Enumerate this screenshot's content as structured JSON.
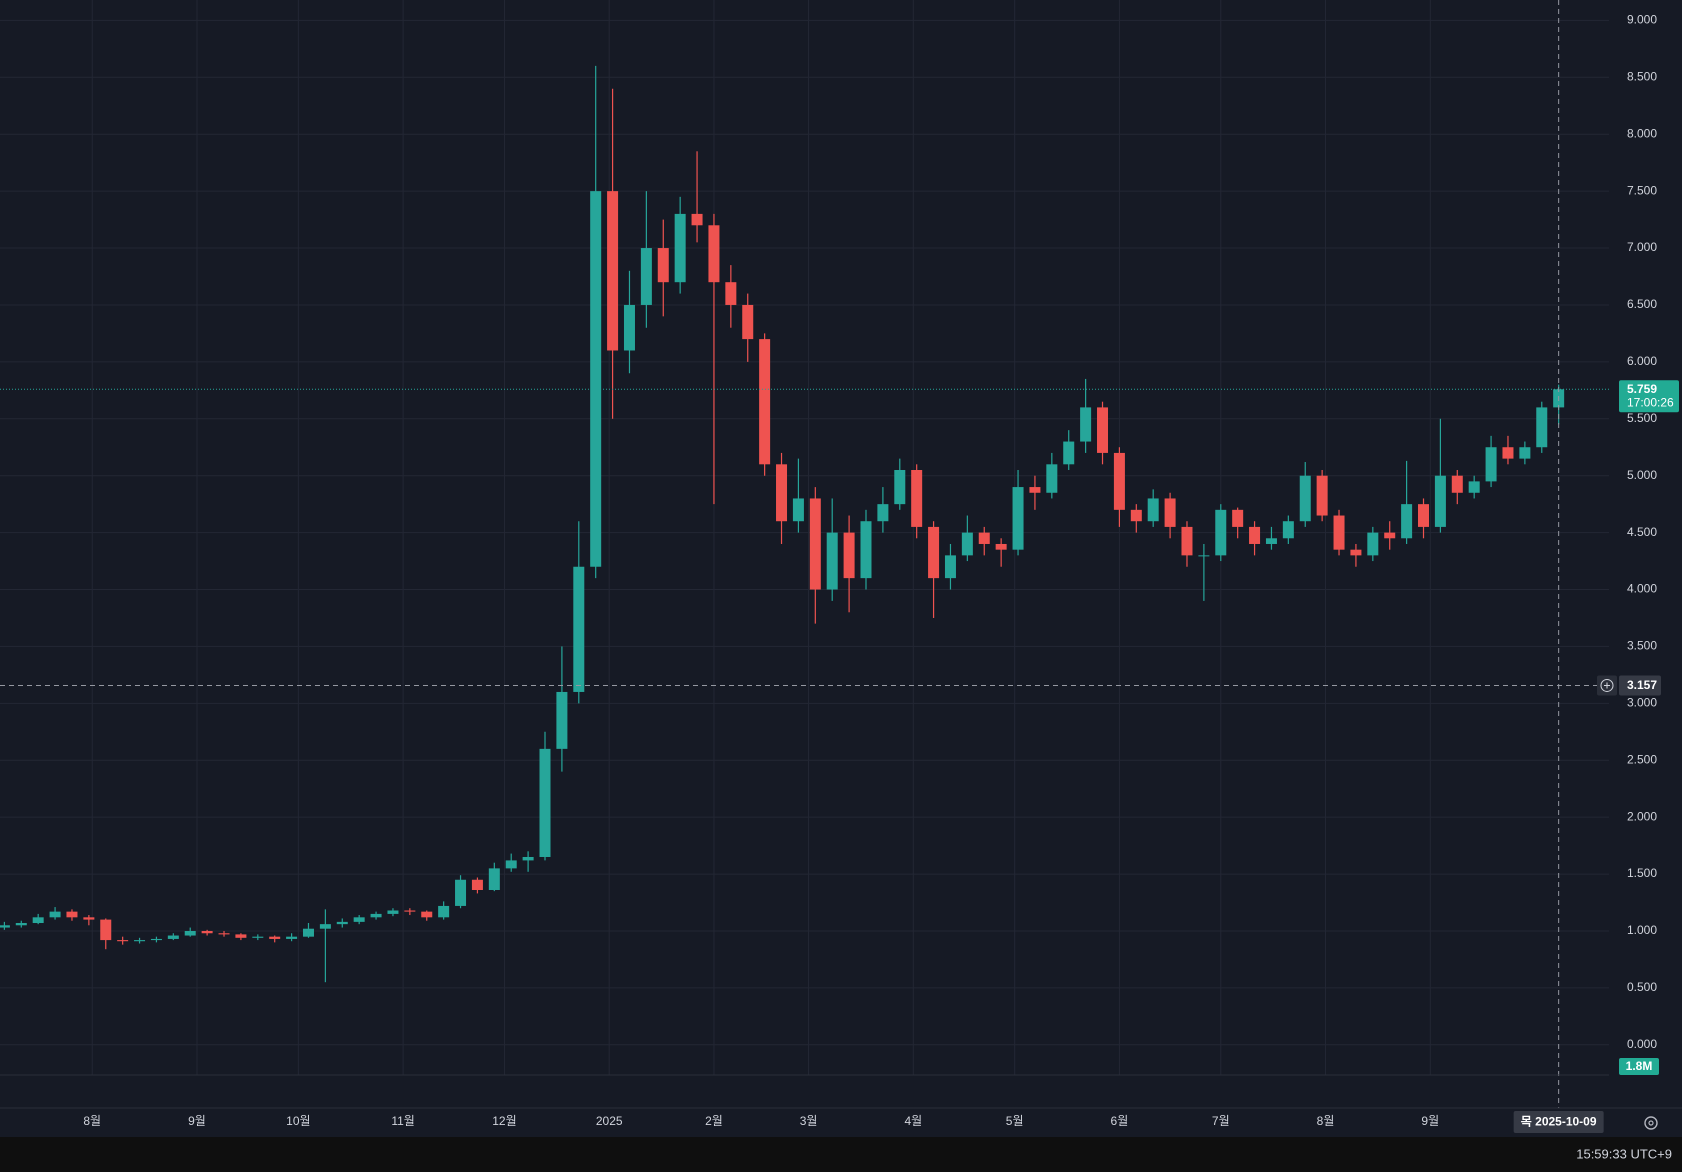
{
  "chart_data": {
    "type": "candlestick",
    "up_color": "#26a69a",
    "down_color": "#ef5350",
    "grid": true,
    "x": [
      -26,
      -21,
      -16,
      -11,
      -6,
      -1,
      4,
      9,
      14,
      19,
      24,
      29,
      34,
      39,
      44,
      49,
      54,
      59,
      64,
      69,
      74,
      79,
      84,
      89,
      94,
      99,
      104,
      109,
      114,
      119,
      124,
      129,
      134,
      139,
      144,
      149,
      154,
      159,
      164,
      169,
      174,
      179,
      184,
      189,
      194,
      199,
      204,
      209,
      214,
      219,
      224,
      229,
      234,
      239,
      244,
      249,
      254,
      259,
      264,
      269,
      274,
      279,
      284,
      289,
      294,
      299,
      304,
      309,
      314,
      319,
      324,
      329,
      334,
      339,
      344,
      349,
      354,
      359,
      364,
      369,
      374,
      379,
      384,
      389,
      394,
      399,
      404,
      409,
      414,
      419,
      424,
      429,
      434
    ],
    "ohlc": [
      [
        1.03,
        1.08,
        1.01,
        1.05
      ],
      [
        1.05,
        1.09,
        1.03,
        1.07
      ],
      [
        1.07,
        1.15,
        1.06,
        1.12
      ],
      [
        1.12,
        1.21,
        1.1,
        1.17
      ],
      [
        1.17,
        1.19,
        1.09,
        1.12
      ],
      [
        1.12,
        1.14,
        1.05,
        1.1
      ],
      [
        1.1,
        1.11,
        0.84,
        0.92
      ],
      [
        0.92,
        0.95,
        0.88,
        0.91
      ],
      [
        0.91,
        0.94,
        0.89,
        0.92
      ],
      [
        0.92,
        0.95,
        0.9,
        0.93
      ],
      [
        0.93,
        0.98,
        0.92,
        0.96
      ],
      [
        0.96,
        1.03,
        0.95,
        1.0
      ],
      [
        1.0,
        1.01,
        0.96,
        0.98
      ],
      [
        0.98,
        1.0,
        0.95,
        0.97
      ],
      [
        0.97,
        0.98,
        0.92,
        0.94
      ],
      [
        0.94,
        0.97,
        0.92,
        0.95
      ],
      [
        0.95,
        0.96,
        0.9,
        0.93
      ],
      [
        0.93,
        0.98,
        0.91,
        0.95
      ],
      [
        0.95,
        1.07,
        0.94,
        1.02
      ],
      [
        1.02,
        1.19,
        0.55,
        1.06
      ],
      [
        1.06,
        1.11,
        1.03,
        1.08
      ],
      [
        1.08,
        1.14,
        1.06,
        1.12
      ],
      [
        1.12,
        1.17,
        1.1,
        1.15
      ],
      [
        1.15,
        1.2,
        1.13,
        1.18
      ],
      [
        1.18,
        1.2,
        1.14,
        1.17
      ],
      [
        1.17,
        1.18,
        1.09,
        1.12
      ],
      [
        1.12,
        1.26,
        1.1,
        1.22
      ],
      [
        1.22,
        1.49,
        1.2,
        1.45
      ],
      [
        1.45,
        1.47,
        1.33,
        1.36
      ],
      [
        1.36,
        1.6,
        1.35,
        1.55
      ],
      [
        1.55,
        1.68,
        1.52,
        1.62
      ],
      [
        1.62,
        1.7,
        1.52,
        1.65
      ],
      [
        1.65,
        2.75,
        1.62,
        2.6
      ],
      [
        2.6,
        3.5,
        2.4,
        3.1
      ],
      [
        3.1,
        4.6,
        3.0,
        4.2
      ],
      [
        4.2,
        8.6,
        4.1,
        7.5
      ],
      [
        7.5,
        8.4,
        5.5,
        6.1
      ],
      [
        6.1,
        6.8,
        5.9,
        6.5
      ],
      [
        6.5,
        7.5,
        6.3,
        7.0
      ],
      [
        7.0,
        7.25,
        6.4,
        6.7
      ],
      [
        6.7,
        7.45,
        6.6,
        7.3
      ],
      [
        7.3,
        7.85,
        7.05,
        7.2
      ],
      [
        7.2,
        7.3,
        4.75,
        6.7
      ],
      [
        6.7,
        6.85,
        6.3,
        6.5
      ],
      [
        6.5,
        6.6,
        6.0,
        6.2
      ],
      [
        6.2,
        6.25,
        5.0,
        5.1
      ],
      [
        5.1,
        5.2,
        4.4,
        4.6
      ],
      [
        4.6,
        5.15,
        4.5,
        4.8
      ],
      [
        4.8,
        4.9,
        3.7,
        4.0
      ],
      [
        4.0,
        4.8,
        3.9,
        4.5
      ],
      [
        4.5,
        4.65,
        3.8,
        4.1
      ],
      [
        4.1,
        4.7,
        4.0,
        4.6
      ],
      [
        4.6,
        4.9,
        4.5,
        4.75
      ],
      [
        4.75,
        5.15,
        4.7,
        5.05
      ],
      [
        5.05,
        5.1,
        4.45,
        4.55
      ],
      [
        4.55,
        4.6,
        3.75,
        4.1
      ],
      [
        4.1,
        4.4,
        4.0,
        4.3
      ],
      [
        4.3,
        4.65,
        4.25,
        4.5
      ],
      [
        4.5,
        4.55,
        4.3,
        4.4
      ],
      [
        4.4,
        4.45,
        4.2,
        4.35
      ],
      [
        4.35,
        5.05,
        4.3,
        4.9
      ],
      [
        4.9,
        5.0,
        4.7,
        4.85
      ],
      [
        4.85,
        5.2,
        4.8,
        5.1
      ],
      [
        5.1,
        5.4,
        5.05,
        5.3
      ],
      [
        5.3,
        5.85,
        5.2,
        5.6
      ],
      [
        5.6,
        5.65,
        5.1,
        5.2
      ],
      [
        5.2,
        5.25,
        4.55,
        4.7
      ],
      [
        4.7,
        4.75,
        4.5,
        4.6
      ],
      [
        4.6,
        4.88,
        4.55,
        4.8
      ],
      [
        4.8,
        4.85,
        4.45,
        4.55
      ],
      [
        4.55,
        4.6,
        4.2,
        4.3
      ],
      [
        4.3,
        4.4,
        3.9,
        4.3
      ],
      [
        4.3,
        4.75,
        4.25,
        4.7
      ],
      [
        4.7,
        4.72,
        4.45,
        4.55
      ],
      [
        4.55,
        4.6,
        4.3,
        4.4
      ],
      [
        4.4,
        4.55,
        4.35,
        4.45
      ],
      [
        4.45,
        4.65,
        4.4,
        4.6
      ],
      [
        4.6,
        5.12,
        4.55,
        5.0
      ],
      [
        5.0,
        5.05,
        4.6,
        4.65
      ],
      [
        4.65,
        4.7,
        4.3,
        4.35
      ],
      [
        4.35,
        4.4,
        4.2,
        4.3
      ],
      [
        4.3,
        4.55,
        4.25,
        4.5
      ],
      [
        4.5,
        4.6,
        4.35,
        4.45
      ],
      [
        4.45,
        5.13,
        4.4,
        4.75
      ],
      [
        4.75,
        4.8,
        4.45,
        4.55
      ],
      [
        4.55,
        5.5,
        4.5,
        5.0
      ],
      [
        5.0,
        5.05,
        4.75,
        4.85
      ],
      [
        4.85,
        5.0,
        4.8,
        4.95
      ],
      [
        4.95,
        5.35,
        4.9,
        5.25
      ],
      [
        5.25,
        5.35,
        5.1,
        5.15
      ],
      [
        5.15,
        5.3,
        5.1,
        5.25
      ],
      [
        5.25,
        5.65,
        5.2,
        5.6
      ],
      [
        5.6,
        5.8,
        5.45,
        5.759
      ]
    ],
    "xlim": [
      -27.3,
      448.9
    ],
    "xticks": [
      {
        "value": 0,
        "label": "8월"
      },
      {
        "value": 31,
        "label": "9월"
      },
      {
        "value": 61,
        "label": "10월"
      },
      {
        "value": 92,
        "label": "11월"
      },
      {
        "value": 122,
        "label": "12월"
      },
      {
        "value": 153,
        "label": "2025"
      },
      {
        "value": 184,
        "label": "2월"
      },
      {
        "value": 212,
        "label": "3월"
      },
      {
        "value": 243,
        "label": "4월"
      },
      {
        "value": 273,
        "label": "5월"
      },
      {
        "value": 304,
        "label": "6월"
      },
      {
        "value": 334,
        "label": "7월"
      },
      {
        "value": 365,
        "label": "8월"
      },
      {
        "value": 396,
        "label": "9월"
      }
    ],
    "ylim": [
      0,
      9
    ],
    "yticks": [
      {
        "value": 0,
        "label": "0.000"
      },
      {
        "value": 0.5,
        "label": "0.500"
      },
      {
        "value": 1,
        "label": "1.000"
      },
      {
        "value": 1.5,
        "label": "1.500"
      },
      {
        "value": 2,
        "label": "2.000"
      },
      {
        "value": 2.5,
        "label": "2.500"
      },
      {
        "value": 3,
        "label": "3.000"
      },
      {
        "value": 3.5,
        "label": "3.500"
      },
      {
        "value": 4,
        "label": "4.000"
      },
      {
        "value": 4.5,
        "label": "4.500"
      },
      {
        "value": 5,
        "label": "5.000"
      },
      {
        "value": 5.5,
        "label": "5.500"
      },
      {
        "value": 6,
        "label": "6.000"
      },
      {
        "value": 6.5,
        "label": "6.500"
      },
      {
        "value": 7,
        "label": "7.000"
      },
      {
        "value": 7.5,
        "label": "7.500"
      },
      {
        "value": 8,
        "label": "8.000"
      },
      {
        "value": 8.5,
        "label": "8.500"
      },
      {
        "value": 9,
        "label": "9.000"
      }
    ],
    "countdown": "17:00:26",
    "crosshair": {
      "value": 3.157,
      "label": "3.157",
      "date_label": "목 2025-10-09"
    },
    "volume_label": "1.8M",
    "clock": "15:59:33 UTC+9"
  }
}
